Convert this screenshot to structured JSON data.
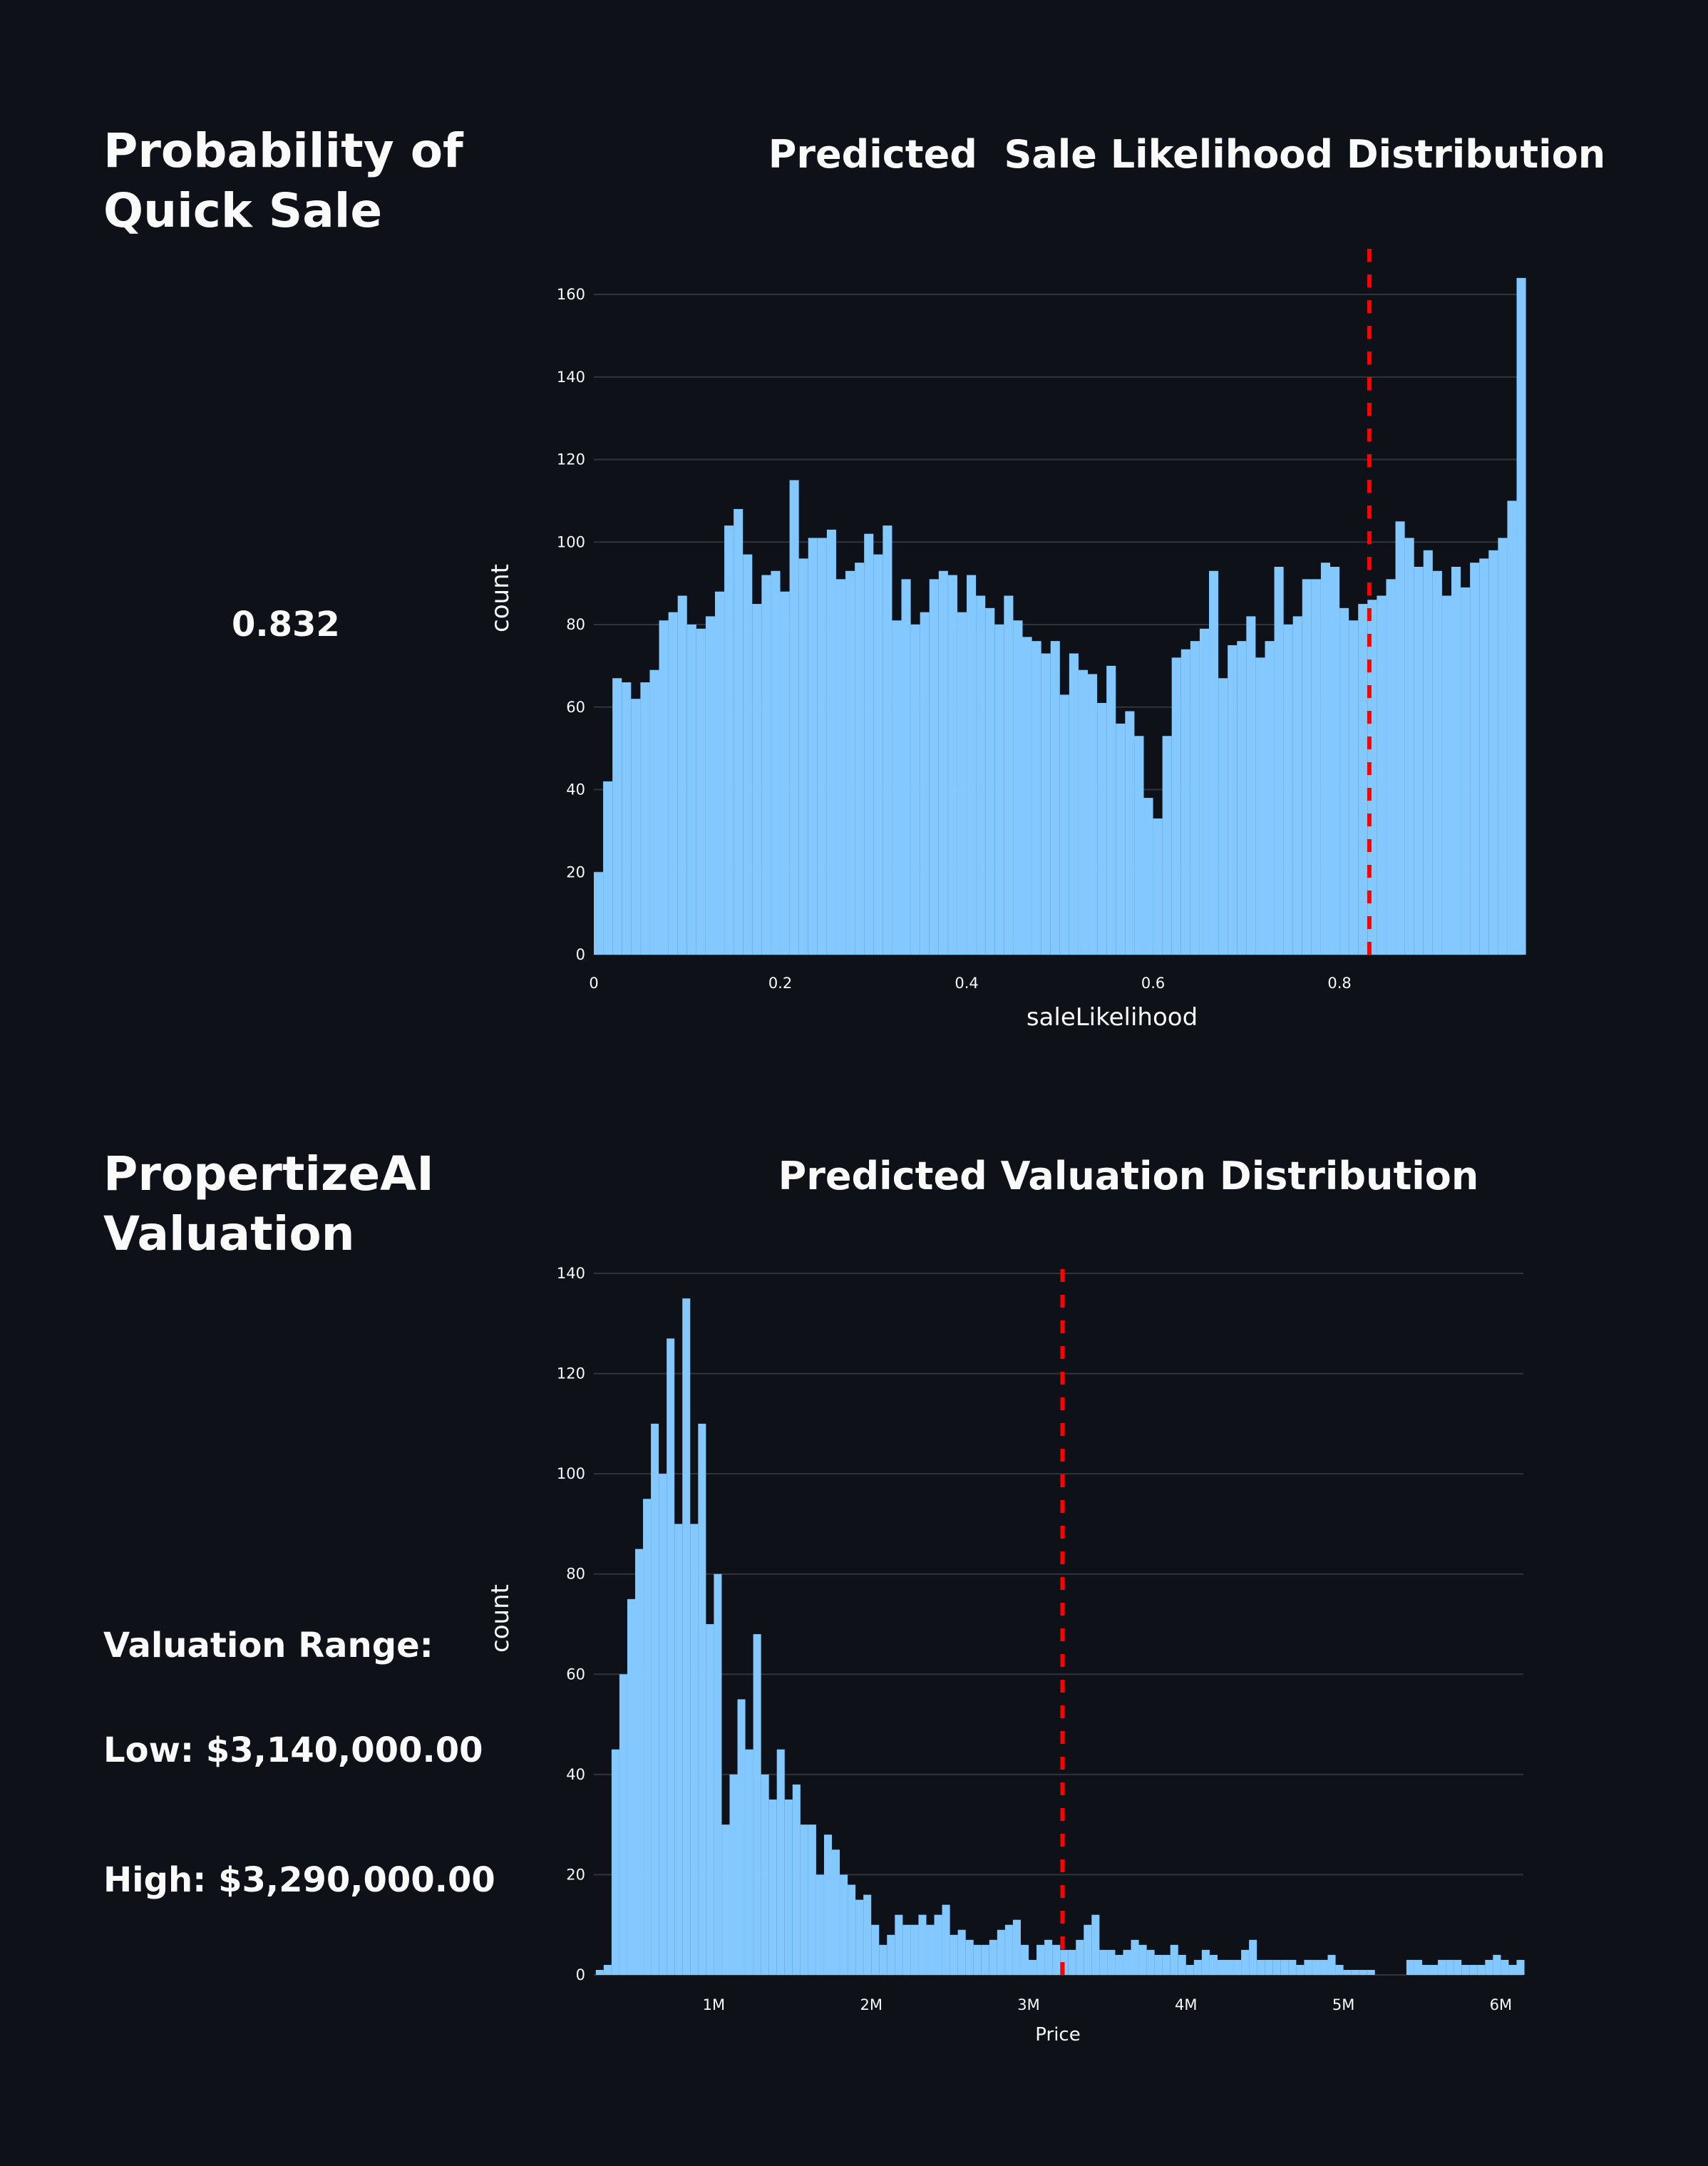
{
  "sections": {
    "quick_sale": {
      "heading": "Probability of Quick Sale",
      "value": "0.832"
    },
    "valuation": {
      "heading": "PropertizeAI Valuation",
      "range_label": "Valuation Range:",
      "low": "Low: $3,140,000.00",
      "high": "High: $3,290,000.00"
    }
  },
  "colors": {
    "background": "#0e1117",
    "bar": "#83c9ff",
    "marker": "#ff0000",
    "grid": "#31333f",
    "text": "#fafafa"
  },
  "chart_data": [
    {
      "type": "bar",
      "title": "Predicted  Sale Likelihood Distribution",
      "xlabel": "saleLikelihood",
      "ylabel": "count",
      "x_start": 0,
      "bin_width": 0.01,
      "values": [
        20,
        42,
        67,
        66,
        62,
        66,
        69,
        81,
        83,
        87,
        80,
        79,
        82,
        88,
        104,
        108,
        97,
        85,
        92,
        93,
        88,
        115,
        96,
        101,
        101,
        103,
        91,
        93,
        95,
        102,
        97,
        104,
        81,
        91,
        80,
        83,
        91,
        93,
        92,
        83,
        92,
        87,
        84,
        80,
        87,
        81,
        77,
        76,
        73,
        76,
        63,
        73,
        69,
        68,
        61,
        70,
        56,
        59,
        53,
        38,
        33,
        53,
        72,
        74,
        76,
        79,
        93,
        67,
        75,
        76,
        82,
        72,
        76,
        94,
        80,
        82,
        91,
        91,
        95,
        94,
        84,
        81,
        85,
        86,
        87,
        91,
        105,
        101,
        94,
        98,
        93,
        87,
        94,
        89,
        95,
        96,
        98,
        101,
        110,
        164
      ],
      "marker_line": 0.832,
      "xticks": [
        {
          "v": 0,
          "label": "0"
        },
        {
          "v": 0.2,
          "label": "0.2"
        },
        {
          "v": 0.4,
          "label": "0.4"
        },
        {
          "v": 0.6,
          "label": "0.6"
        },
        {
          "v": 0.8,
          "label": "0.8"
        }
      ],
      "yticks": [
        {
          "v": 0,
          "label": "0"
        },
        {
          "v": 20,
          "label": "20"
        },
        {
          "v": 40,
          "label": "40"
        },
        {
          "v": 60,
          "label": "60"
        },
        {
          "v": 80,
          "label": "80"
        },
        {
          "v": 100,
          "label": "100"
        },
        {
          "v": 120,
          "label": "120"
        },
        {
          "v": 140,
          "label": "140"
        },
        {
          "v": 160,
          "label": "160"
        }
      ],
      "xlim": [
        0,
        1
      ],
      "ylim": [
        0,
        171
      ],
      "grid": true
    },
    {
      "type": "bar",
      "title": "Predicted Valuation Distribution",
      "xlabel": "Price",
      "ylabel": "count",
      "x_start": 0.25,
      "bin_width": 0.05,
      "x_unit": "M",
      "values": [
        1,
        2,
        45,
        60,
        75,
        85,
        95,
        110,
        100,
        127,
        90,
        135,
        90,
        110,
        70,
        80,
        30,
        40,
        55,
        45,
        68,
        40,
        35,
        45,
        35,
        38,
        30,
        30,
        20,
        28,
        25,
        20,
        18,
        15,
        16,
        10,
        6,
        8,
        12,
        10,
        10,
        12,
        10,
        12,
        14,
        8,
        9,
        7,
        6,
        6,
        7,
        9,
        10,
        11,
        6,
        3,
        6,
        7,
        6,
        5,
        5,
        7,
        10,
        12,
        5,
        5,
        4,
        5,
        7,
        6,
        5,
        4,
        4,
        6,
        4,
        2,
        3,
        5,
        4,
        3,
        3,
        3,
        5,
        7,
        3,
        3,
        3,
        3,
        3,
        2,
        3,
        3,
        3,
        4,
        2,
        1,
        1,
        1,
        1,
        0,
        0,
        0,
        0,
        3,
        3,
        2,
        2,
        3,
        3,
        3,
        2,
        2,
        2,
        3,
        4,
        3,
        2,
        3
      ],
      "marker_line": 3.215,
      "xticks": [
        {
          "v": 1,
          "label": "1M"
        },
        {
          "v": 2,
          "label": "2M"
        },
        {
          "v": 3,
          "label": "3M"
        },
        {
          "v": 4,
          "label": "4M"
        },
        {
          "v": 5,
          "label": "5M"
        },
        {
          "v": 6,
          "label": "6M"
        }
      ],
      "yticks": [
        {
          "v": 0,
          "label": "0"
        },
        {
          "v": 20,
          "label": "20"
        },
        {
          "v": 40,
          "label": "40"
        },
        {
          "v": 60,
          "label": "60"
        },
        {
          "v": 80,
          "label": "80"
        },
        {
          "v": 100,
          "label": "100"
        },
        {
          "v": 120,
          "label": "120"
        },
        {
          "v": 140,
          "label": "140"
        }
      ],
      "xlim": [
        0.237,
        6.14
      ],
      "ylim": [
        0,
        141
      ],
      "grid": true
    }
  ]
}
